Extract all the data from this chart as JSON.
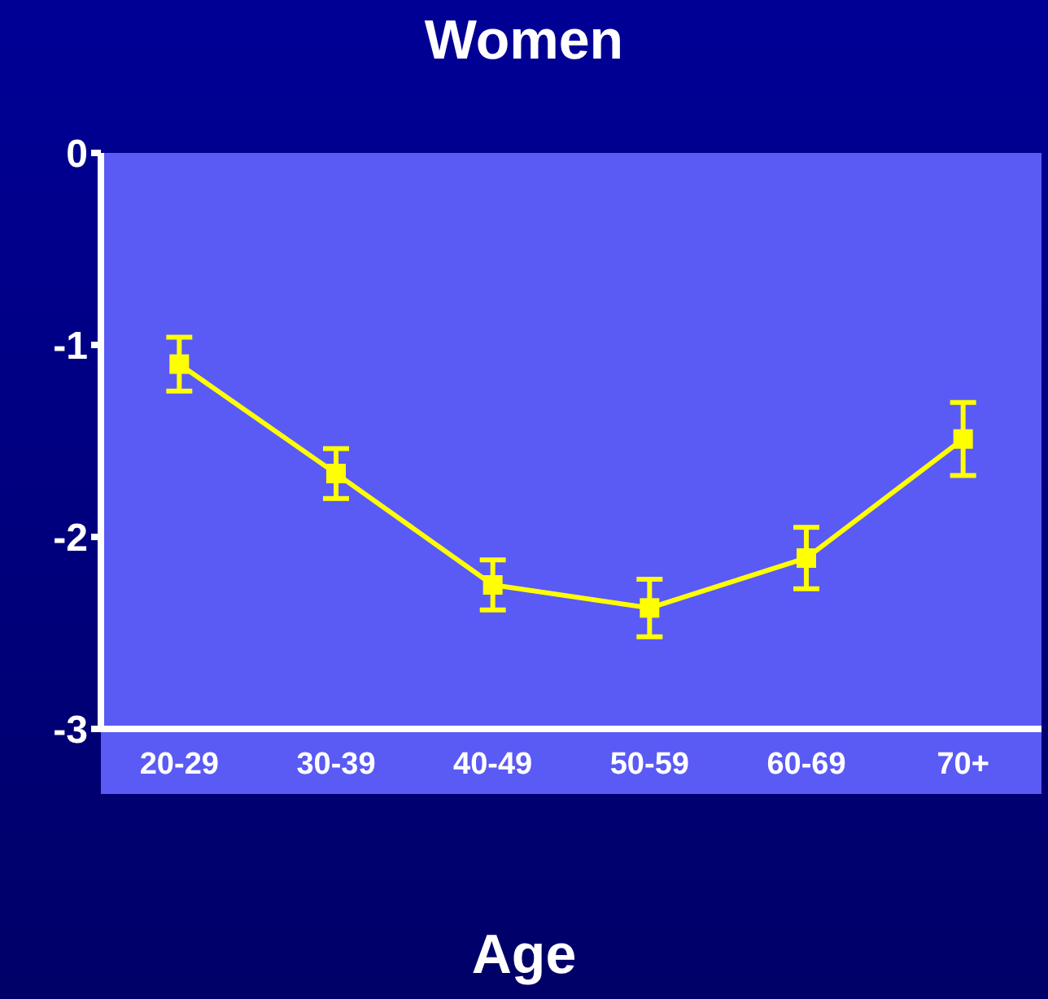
{
  "chart_data": {
    "type": "line",
    "title": "Women",
    "xlabel": "Age",
    "categories": [
      "20-29",
      "30-39",
      "40-49",
      "50-59",
      "60-69",
      "70+"
    ],
    "series": [
      {
        "color": "#ffff00",
        "values": [
          -1.1,
          -1.67,
          -2.25,
          -2.37,
          -2.11,
          -1.49
        ],
        "errors": [
          0.14,
          0.13,
          0.13,
          0.15,
          0.16,
          0.19
        ]
      }
    ],
    "ylim": [
      -3,
      0
    ],
    "yticks": [
      0,
      -1,
      -2,
      -3
    ],
    "grid": false,
    "legend": false,
    "marker": "square",
    "line_style": "solid"
  }
}
